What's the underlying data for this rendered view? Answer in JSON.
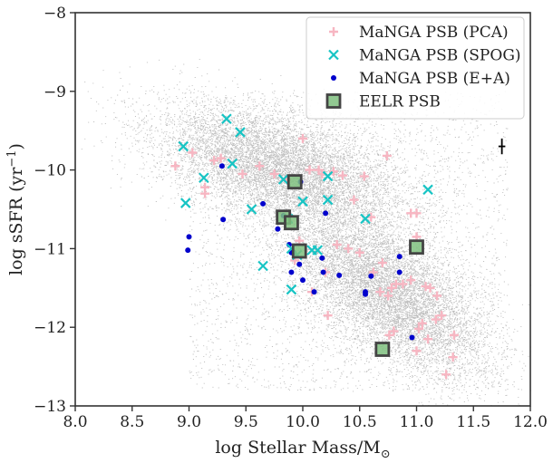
{
  "chart_data": {
    "type": "scatter",
    "title": "",
    "xlabel": "log Stellar Mass/M",
    "xlabel_subscript": "⊙",
    "ylabel": "log sSFR (yr",
    "ylabel_superscript": "−1",
    "ylabel_close": ")",
    "xlim": [
      8.0,
      12.0
    ],
    "ylim": [
      -13,
      -8
    ],
    "x_ticks": [
      8.0,
      8.5,
      9.0,
      9.5,
      10.0,
      10.5,
      11.0,
      11.5,
      12.0
    ],
    "x_tick_labels": [
      "8.0",
      "8.5",
      "9.0",
      "9.5",
      "10.0",
      "10.5",
      "11.0",
      "11.5",
      "12.0"
    ],
    "y_ticks": [
      -13,
      -12,
      -11,
      -10,
      -9,
      -8
    ],
    "y_tick_labels": [
      "−13",
      "−12",
      "−11",
      "−10",
      "−9",
      "−8"
    ],
    "legend_position": "top-right",
    "legend": [
      {
        "label": "MaNGA PSB (PCA)",
        "marker": "plus",
        "color": "#f7b6c2"
      },
      {
        "label": "MaNGA PSB (SPOG)",
        "marker": "x",
        "color": "#17c4c4"
      },
      {
        "label": "MaNGA PSB (E+A)",
        "marker": "dot",
        "color": "#0000cc"
      },
      {
        "label": "EELR PSB",
        "marker": "square",
        "color": "#7fbf7f",
        "edge": "#444444"
      }
    ],
    "error_bar": {
      "x": 11.75,
      "y": -9.7,
      "xerr": 0.03,
      "yerr": 0.1
    },
    "background_population": {
      "description_visible": false,
      "red_sequence": {
        "x_range": [
          9.8,
          11.8
        ],
        "y_center_at_10": -11.0,
        "slope": -0.75
      },
      "blue_cloud": {
        "x_range": [
          8.1,
          11.3
        ],
        "y_center_at_10": -10.05,
        "slope": -0.35
      },
      "color": "#1a1a1a"
    },
    "series": [
      {
        "name": "MaNGA PSB (PCA)",
        "points": [
          [
            8.88,
            -9.95
          ],
          [
            9.03,
            -9.78
          ],
          [
            9.14,
            -10.22
          ],
          [
            9.14,
            -10.3
          ],
          [
            9.22,
            -9.88
          ],
          [
            9.28,
            -9.85
          ],
          [
            9.47,
            -10.05
          ],
          [
            9.62,
            -9.95
          ],
          [
            9.75,
            -10.05
          ],
          [
            9.86,
            -10.12
          ],
          [
            10.0,
            -9.6
          ],
          [
            10.06,
            -10.0
          ],
          [
            10.14,
            -10.0
          ],
          [
            10.17,
            -10.05
          ],
          [
            10.27,
            -10.02
          ],
          [
            10.35,
            -10.07
          ],
          [
            10.45,
            -10.38
          ],
          [
            10.54,
            -10.08
          ],
          [
            10.6,
            -10.6
          ],
          [
            10.62,
            -11.3
          ],
          [
            10.74,
            -9.82
          ],
          [
            10.95,
            -10.55
          ],
          [
            11.0,
            -10.55
          ],
          [
            11.0,
            -10.85
          ],
          [
            11.12,
            -11.5
          ],
          [
            10.3,
            -10.95
          ],
          [
            10.5,
            -11.05
          ],
          [
            10.2,
            -11.3
          ],
          [
            10.4,
            -11.0
          ],
          [
            10.68,
            -11.55
          ],
          [
            10.75,
            -11.6
          ],
          [
            10.78,
            -11.5
          ],
          [
            10.82,
            -11.45
          ],
          [
            10.88,
            -11.45
          ],
          [
            10.95,
            -11.4
          ],
          [
            11.08,
            -11.48
          ],
          [
            11.18,
            -11.6
          ],
          [
            11.22,
            -11.85
          ],
          [
            11.17,
            -11.9
          ],
          [
            11.05,
            -11.95
          ],
          [
            10.8,
            -12.05
          ],
          [
            10.76,
            -12.1
          ],
          [
            11.0,
            -12.3
          ],
          [
            11.02,
            -12.02
          ],
          [
            11.1,
            -12.15
          ],
          [
            11.33,
            -12.1
          ],
          [
            11.32,
            -12.38
          ],
          [
            11.26,
            -12.6
          ],
          [
            10.08,
            -11.55
          ],
          [
            10.22,
            -11.85
          ],
          [
            9.93,
            -11.15
          ],
          [
            10.7,
            -11.18
          ],
          [
            9.97,
            -10.9
          ]
        ]
      },
      {
        "name": "MaNGA PSB (SPOG)",
        "points": [
          [
            8.95,
            -9.7
          ],
          [
            8.97,
            -10.42
          ],
          [
            9.13,
            -10.1
          ],
          [
            9.33,
            -9.35
          ],
          [
            9.38,
            -9.92
          ],
          [
            9.45,
            -9.52
          ],
          [
            9.55,
            -10.5
          ],
          [
            9.65,
            -11.22
          ],
          [
            9.83,
            -10.12
          ],
          [
            9.87,
            -10.62
          ],
          [
            9.9,
            -11.52
          ],
          [
            9.9,
            -11.0
          ],
          [
            9.95,
            -11.08
          ],
          [
            10.0,
            -10.4
          ],
          [
            10.08,
            -11.02
          ],
          [
            10.13,
            -11.02
          ],
          [
            10.22,
            -10.38
          ],
          [
            10.22,
            -10.08
          ],
          [
            10.55,
            -10.62
          ],
          [
            11.1,
            -10.25
          ]
        ]
      },
      {
        "name": "MaNGA PSB (E+A)",
        "points": [
          [
            9.0,
            -10.85
          ],
          [
            8.99,
            -11.02
          ],
          [
            9.29,
            -9.95
          ],
          [
            9.3,
            -10.63
          ],
          [
            9.65,
            -10.43
          ],
          [
            9.78,
            -10.75
          ],
          [
            9.83,
            -10.58
          ],
          [
            9.88,
            -10.95
          ],
          [
            9.9,
            -11.05
          ],
          [
            9.92,
            -11.05
          ],
          [
            9.9,
            -11.3
          ],
          [
            9.97,
            -11.2
          ],
          [
            10.0,
            -11.4
          ],
          [
            10.1,
            -11.55
          ],
          [
            10.18,
            -11.3
          ],
          [
            10.17,
            -11.12
          ],
          [
            10.2,
            -10.55
          ],
          [
            10.32,
            -11.34
          ],
          [
            10.55,
            -11.55
          ],
          [
            10.6,
            -11.35
          ],
          [
            10.85,
            -11.1
          ],
          [
            10.85,
            -11.3
          ],
          [
            10.96,
            -12.13
          ],
          [
            9.98,
            -10.15
          ],
          [
            10.55,
            -11.58
          ]
        ]
      },
      {
        "name": "EELR PSB",
        "points": [
          [
            9.93,
            -10.15
          ],
          [
            9.83,
            -10.6
          ],
          [
            9.9,
            -10.67
          ],
          [
            9.97,
            -11.03
          ],
          [
            10.7,
            -12.28
          ],
          [
            11.0,
            -10.98
          ]
        ]
      }
    ]
  }
}
